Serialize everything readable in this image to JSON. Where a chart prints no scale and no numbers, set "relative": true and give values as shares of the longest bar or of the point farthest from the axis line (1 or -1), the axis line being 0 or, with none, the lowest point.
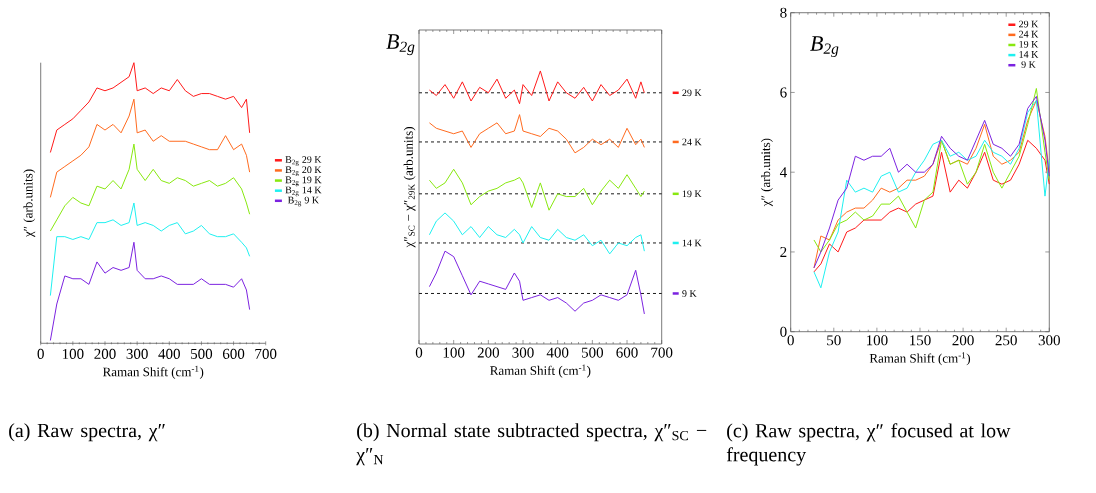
{
  "chart_data": [
    {
      "type": "line",
      "relative": true,
      "title": "(a) Raw spectra, χ″",
      "xlabel": "Raman Shift (cm$^{-1}$)",
      "ylabel": "χ″ (arb.units)",
      "xlim": [
        0,
        700
      ],
      "xticks": [
        0,
        100,
        200,
        300,
        400,
        500,
        600,
        700
      ],
      "legend": "right",
      "x": [
        30,
        50,
        75,
        100,
        125,
        150,
        175,
        200,
        225,
        250,
        275,
        290,
        300,
        325,
        350,
        375,
        400,
        425,
        450,
        475,
        500,
        525,
        550,
        575,
        600,
        625,
        640,
        650
      ],
      "series": [
        {
          "name": "B$_{2g}$ 29 K",
          "color": "#ff1a1a",
          "values": [
            0.68,
            0.76,
            0.78,
            0.8,
            0.83,
            0.86,
            0.91,
            0.9,
            0.91,
            0.93,
            0.95,
            1.0,
            0.9,
            0.91,
            0.89,
            0.91,
            0.9,
            0.94,
            0.9,
            0.88,
            0.89,
            0.89,
            0.88,
            0.87,
            0.88,
            0.84,
            0.87,
            0.75
          ]
        },
        {
          "name": "B$_{2g}$ 20 K",
          "color": "#ff6a1f",
          "values": [
            0.52,
            0.61,
            0.63,
            0.65,
            0.67,
            0.7,
            0.78,
            0.76,
            0.78,
            0.75,
            0.81,
            0.87,
            0.75,
            0.76,
            0.72,
            0.74,
            0.72,
            0.72,
            0.72,
            0.71,
            0.7,
            0.69,
            0.69,
            0.74,
            0.69,
            0.71,
            0.67,
            0.61
          ]
        },
        {
          "name": "B$_{2g}$ 19 K",
          "color": "#88e80f",
          "values": [
            0.4,
            0.44,
            0.49,
            0.52,
            0.5,
            0.49,
            0.56,
            0.55,
            0.58,
            0.55,
            0.62,
            0.71,
            0.62,
            0.58,
            0.62,
            0.58,
            0.57,
            0.59,
            0.58,
            0.56,
            0.57,
            0.58,
            0.56,
            0.57,
            0.59,
            0.55,
            0.5,
            0.46
          ]
        },
        {
          "name": "B$_{2g}$ 14 K",
          "color": "#1ef0f0",
          "values": [
            0.17,
            0.38,
            0.38,
            0.37,
            0.38,
            0.37,
            0.43,
            0.43,
            0.44,
            0.42,
            0.43,
            0.5,
            0.42,
            0.43,
            0.42,
            0.4,
            0.42,
            0.43,
            0.39,
            0.4,
            0.42,
            0.39,
            0.38,
            0.38,
            0.39,
            0.36,
            0.34,
            0.31
          ]
        },
        {
          "name": "B$_{2g}$ 9 K",
          "color": "#7b22e0",
          "values": [
            0.01,
            0.14,
            0.24,
            0.23,
            0.23,
            0.21,
            0.29,
            0.25,
            0.27,
            0.26,
            0.27,
            0.36,
            0.26,
            0.23,
            0.23,
            0.24,
            0.23,
            0.21,
            0.21,
            0.21,
            0.23,
            0.21,
            0.21,
            0.21,
            0.2,
            0.23,
            0.19,
            0.12
          ]
        }
      ]
    },
    {
      "type": "line",
      "relative": true,
      "title": "(b) Normal state subtracted spectra, χ″$_{SC}$ − χ″$_{N}$",
      "xlabel": "Raman Shift (cm$^{-1}$)",
      "ylabel": "χ″$_{SC}$ − χ″$_{29K}$ (arb.units)",
      "xlim": [
        0,
        700
      ],
      "xticks": [
        0,
        100,
        200,
        300,
        400,
        500,
        600,
        700
      ],
      "annotations": [
        "B$_{2g}$"
      ],
      "legend": "right",
      "ref_lines": [
        {
          "axis": "y",
          "value": 0.92,
          "color": "#000000",
          "line_style": "dashed"
        },
        {
          "axis": "y",
          "value": 0.74,
          "color": "#000000",
          "line_style": "dashed"
        },
        {
          "axis": "y",
          "value": 0.55,
          "color": "#000000",
          "line_style": "dashed"
        },
        {
          "axis": "y",
          "value": 0.37,
          "color": "#000000",
          "line_style": "dashed"
        },
        {
          "axis": "y",
          "value": 0.185,
          "color": "#000000",
          "line_style": "dashed"
        }
      ],
      "x": [
        30,
        50,
        75,
        100,
        125,
        150,
        175,
        200,
        225,
        250,
        275,
        290,
        300,
        325,
        350,
        375,
        400,
        425,
        450,
        475,
        500,
        525,
        550,
        575,
        600,
        625,
        640,
        650
      ],
      "series": [
        {
          "name": "29 K",
          "color": "#ff1a1a",
          "values": [
            0.93,
            0.91,
            0.95,
            0.9,
            0.96,
            0.89,
            0.94,
            0.92,
            0.97,
            0.9,
            0.93,
            0.88,
            0.95,
            0.91,
            1.0,
            0.89,
            0.96,
            0.92,
            0.9,
            0.94,
            0.89,
            0.95,
            0.91,
            0.93,
            0.97,
            0.9,
            0.96,
            0.92
          ]
        },
        {
          "name": "24 K",
          "color": "#ff6a1f",
          "values": [
            0.81,
            0.79,
            0.78,
            0.77,
            0.78,
            0.72,
            0.77,
            0.79,
            0.81,
            0.77,
            0.78,
            0.84,
            0.78,
            0.77,
            0.76,
            0.79,
            0.78,
            0.75,
            0.7,
            0.72,
            0.75,
            0.73,
            0.75,
            0.72,
            0.79,
            0.73,
            0.75,
            0.72
          ]
        },
        {
          "name": "19 K",
          "color": "#88e80f",
          "values": [
            0.6,
            0.57,
            0.59,
            0.64,
            0.59,
            0.51,
            0.54,
            0.56,
            0.57,
            0.59,
            0.6,
            0.61,
            0.59,
            0.5,
            0.59,
            0.49,
            0.55,
            0.54,
            0.54,
            0.57,
            0.51,
            0.56,
            0.6,
            0.57,
            0.62,
            0.57,
            0.54,
            0.56
          ]
        },
        {
          "name": "14 K",
          "color": "#1ef0f0",
          "values": [
            0.4,
            0.45,
            0.48,
            0.45,
            0.4,
            0.43,
            0.39,
            0.43,
            0.4,
            0.39,
            0.42,
            0.4,
            0.37,
            0.43,
            0.39,
            0.38,
            0.42,
            0.39,
            0.38,
            0.4,
            0.36,
            0.38,
            0.33,
            0.37,
            0.36,
            0.39,
            0.4,
            0.34
          ]
        },
        {
          "name": "9 K",
          "color": "#7b22e0",
          "values": [
            0.21,
            0.26,
            0.34,
            0.32,
            0.25,
            0.18,
            0.23,
            0.22,
            0.21,
            0.2,
            0.26,
            0.23,
            0.16,
            0.17,
            0.18,
            0.16,
            0.17,
            0.15,
            0.12,
            0.15,
            0.16,
            0.18,
            0.17,
            0.16,
            0.18,
            0.27,
            0.18,
            0.11
          ]
        }
      ]
    },
    {
      "type": "line",
      "title": "(c) Raw spectra, χ″ focused at low frequency",
      "xlabel": "Raman Shift (cm$^{-1}$)",
      "ylabel": "χ″ (arb.units)",
      "xlim": [
        0,
        300
      ],
      "xticks": [
        0,
        50,
        100,
        150,
        200,
        250,
        300
      ],
      "ylim": [
        0,
        8
      ],
      "yticks": [
        0,
        2,
        4,
        6,
        8
      ],
      "legend": "top right",
      "annotations": [
        "B$_{2g}$"
      ],
      "x": [
        27,
        35,
        45,
        55,
        65,
        75,
        85,
        95,
        105,
        115,
        125,
        135,
        145,
        155,
        165,
        175,
        185,
        195,
        205,
        215,
        225,
        235,
        245,
        255,
        265,
        275,
        285,
        295,
        300
      ],
      "series": [
        {
          "name": "29 K",
          "color": "#ff1a1a",
          "values": [
            1.5,
            1.7,
            2.2,
            2.0,
            2.5,
            2.6,
            2.8,
            2.8,
            2.8,
            3.0,
            3.1,
            3.0,
            3.2,
            3.3,
            3.4,
            4.5,
            3.5,
            3.8,
            3.6,
            4.0,
            4.5,
            3.8,
            3.7,
            3.8,
            4.2,
            4.8,
            4.6,
            4.3,
            3.7
          ]
        },
        {
          "name": "24 K",
          "color": "#ff6a1f",
          "values": [
            1.6,
            2.4,
            2.3,
            2.8,
            3.0,
            3.1,
            3.1,
            3.3,
            3.6,
            3.5,
            3.6,
            3.8,
            3.8,
            3.9,
            4.2,
            4.8,
            4.2,
            4.3,
            4.2,
            4.6,
            5.2,
            4.4,
            4.2,
            4.3,
            4.5,
            5.3,
            5.8,
            4.9,
            4.0
          ]
        },
        {
          "name": "19 K",
          "color": "#88e80f",
          "values": [
            2.3,
            2.0,
            2.3,
            2.7,
            2.8,
            3.0,
            2.8,
            2.9,
            3.2,
            3.2,
            3.4,
            3.0,
            2.6,
            3.3,
            3.5,
            4.8,
            4.2,
            4.3,
            3.7,
            4.0,
            4.7,
            4.0,
            3.6,
            4.0,
            4.4,
            5.2,
            6.1,
            4.5,
            3.8
          ]
        },
        {
          "name": "14 K",
          "color": "#1ef0f0",
          "values": [
            1.5,
            1.1,
            2.0,
            2.5,
            3.8,
            3.5,
            3.6,
            3.5,
            3.9,
            4.0,
            3.5,
            3.6,
            4.0,
            4.3,
            4.7,
            4.8,
            4.4,
            4.5,
            4.3,
            4.4,
            4.8,
            4.5,
            4.4,
            4.2,
            4.6,
            5.5,
            5.8,
            3.4,
            4.3
          ]
        },
        {
          "name": "9 K",
          "color": "#7b22e0",
          "values": [
            1.6,
            2.0,
            2.6,
            3.3,
            3.6,
            4.4,
            4.3,
            4.4,
            4.4,
            4.6,
            4.0,
            4.2,
            4.0,
            4.0,
            4.2,
            4.9,
            4.6,
            4.4,
            4.3,
            4.8,
            5.3,
            4.7,
            4.6,
            4.4,
            4.7,
            5.6,
            5.9,
            4.8,
            3.9
          ]
        }
      ]
    }
  ]
}
